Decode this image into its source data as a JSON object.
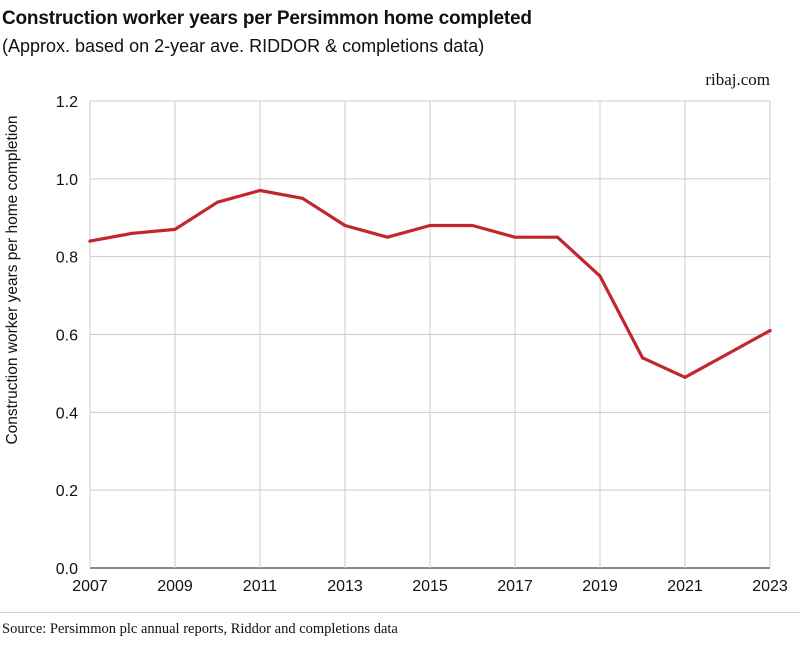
{
  "header": {
    "title": "Construction worker years per Persimmon home completed",
    "subtitle": "(Approx. based on 2-year ave. RIDDOR & completions data)",
    "brand": "ribaj.com"
  },
  "footer": {
    "source": "Source: Persimmon plc annual reports, Riddor and completions data"
  },
  "colors": {
    "line": "#c1272d",
    "grid": "#cccccc",
    "text": "#111111"
  },
  "chart_data": {
    "type": "line",
    "title": "Construction worker years per Persimmon home completed",
    "subtitle": "(Approx. based on 2-year ave. RIDDOR & completions data)",
    "xlabel": "",
    "ylabel": "Construction worker years per home completion",
    "xlim": [
      2007,
      2023
    ],
    "ylim": [
      0,
      1.2
    ],
    "x_ticks": [
      "2007",
      "2009",
      "2011",
      "2013",
      "2015",
      "2017",
      "2019",
      "2021",
      "2023"
    ],
    "y_ticks": [
      "0.0",
      "0.2",
      "0.4",
      "0.6",
      "0.8",
      "1.0",
      "1.2"
    ],
    "grid": "vertical and horizontal",
    "legend": "none",
    "series": [
      {
        "x": [
          2007,
          2008,
          2009,
          2010,
          2011,
          2012,
          2013,
          2014,
          2015,
          2016,
          2017,
          2018,
          2019,
          2020,
          2021,
          2022,
          2023
        ],
        "values": [
          0.84,
          0.86,
          0.87,
          0.94,
          0.97,
          0.95,
          0.88,
          0.85,
          0.88,
          0.88,
          0.85,
          0.85,
          0.75,
          0.54,
          0.49,
          0.55,
          0.61
        ]
      }
    ]
  }
}
